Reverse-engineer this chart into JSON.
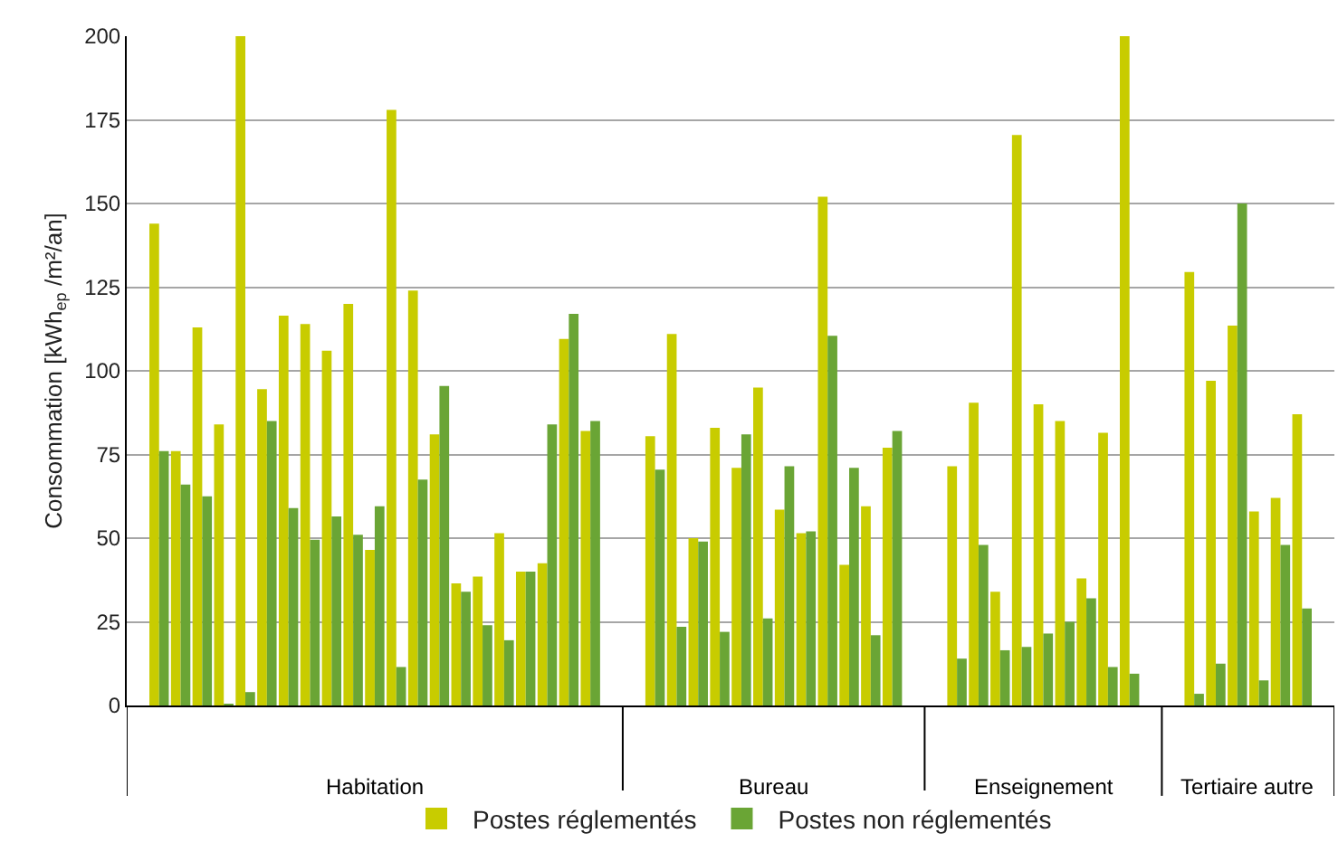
{
  "chart_data": {
    "type": "bar",
    "ylabel": "Consommation [kWh$_{ep}$ /m²/an]",
    "categories": [
      null,
      null,
      null,
      null,
      null,
      null,
      null,
      null,
      null,
      null,
      null,
      null,
      null,
      null,
      null,
      null,
      null,
      null,
      null,
      null,
      null,
      null,
      null,
      null,
      null,
      null,
      null,
      null,
      null,
      null,
      null,
      null,
      null,
      null,
      null,
      null,
      null,
      null,
      null,
      null,
      null,
      null,
      null,
      null,
      null,
      null,
      null,
      null,
      null,
      null,
      null,
      null,
      null,
      null,
      null,
      null
    ],
    "series": [
      {
        "name": "Postes réglementés",
        "color": "#c8cc00",
        "values": [
          null,
          144,
          76,
          113,
          84,
          200,
          94.5,
          116.5,
          114,
          106,
          120,
          46.5,
          178,
          124,
          81,
          36.5,
          38.5,
          51.5,
          40,
          42.5,
          109.5,
          82,
          null,
          null,
          80.5,
          111,
          50,
          83,
          71,
          95,
          58.5,
          51.5,
          152,
          42,
          59.5,
          77,
          null,
          null,
          71.5,
          90.5,
          34,
          170.5,
          90,
          85,
          38,
          81.5,
          200,
          null,
          null,
          129.5,
          97,
          113.5,
          58,
          62,
          87,
          null
        ]
      },
      {
        "name": "Postes non réglementés",
        "color": "#6aa535",
        "values": [
          null,
          76,
          66,
          62.5,
          0.5,
          4,
          85,
          59,
          49.5,
          56.5,
          51,
          59.5,
          11.5,
          67.5,
          95.5,
          34,
          24,
          19.5,
          40,
          84,
          117,
          85,
          null,
          null,
          70.5,
          23.5,
          49,
          22,
          81,
          26,
          71.5,
          52,
          110.5,
          71,
          21,
          82,
          null,
          null,
          14,
          48,
          16.5,
          17.5,
          21.5,
          25,
          32,
          11.5,
          9.5,
          null,
          null,
          3.5,
          12.5,
          150,
          7.5,
          48,
          29,
          null
        ]
      }
    ],
    "annotations": [
      "Habitation",
      "Bureau",
      "Enseignement",
      "Tertiaire autre"
    ],
    "ylim": [
      0,
      200
    ],
    "yticks": [
      0,
      25,
      50,
      75,
      100,
      125,
      150,
      175,
      200
    ],
    "grid": "y",
    "legend": "bottom"
  }
}
